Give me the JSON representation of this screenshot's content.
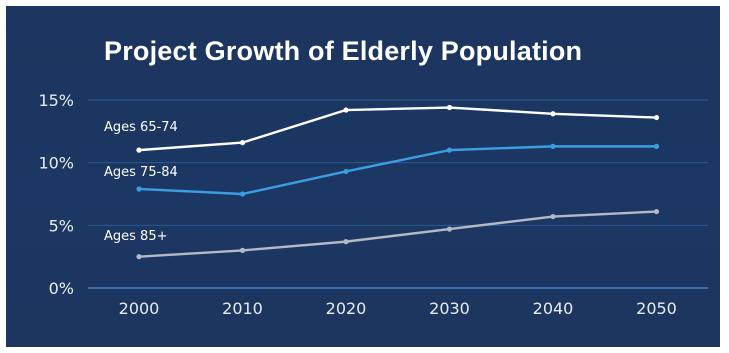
{
  "chart_data": {
    "type": "line",
    "title": "Project Growth of Elderly Population",
    "xlabel": "",
    "ylabel": "",
    "categories": [
      "2000",
      "2010",
      "2020",
      "2030",
      "2040",
      "2050"
    ],
    "y_ticks": [
      "0%",
      "5%",
      "10%",
      "15%"
    ],
    "ylim": [
      0,
      15
    ],
    "grid": true,
    "legend": "inline-left",
    "series": [
      {
        "name": "Ages 65-74",
        "values": [
          11.0,
          11.6,
          14.2,
          14.4,
          13.9,
          13.6
        ],
        "color": "#ffffff"
      },
      {
        "name": "Ages 75-84",
        "values": [
          7.9,
          7.5,
          9.3,
          11.0,
          11.3,
          11.3
        ],
        "color": "#3a9ee0"
      },
      {
        "name": "Ages 85+",
        "values": [
          2.5,
          3.0,
          3.7,
          4.7,
          5.7,
          6.1
        ],
        "color": "#b4b9c8"
      }
    ]
  }
}
